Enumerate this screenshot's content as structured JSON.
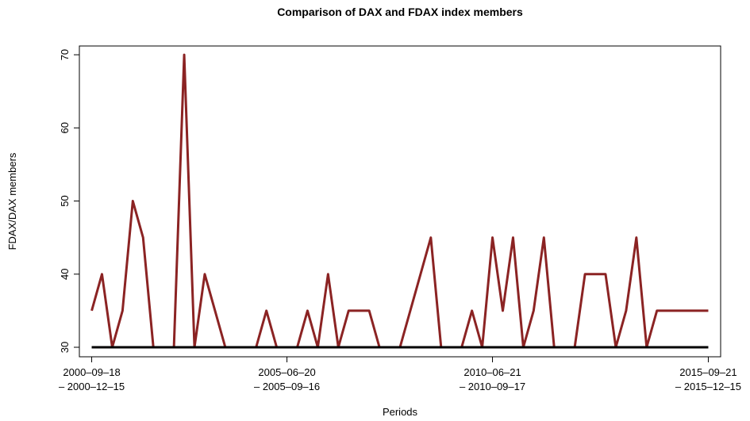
{
  "chart_data": {
    "type": "line",
    "title": "Comparison of DAX and FDAX index members",
    "x_label": "Periods",
    "y_label": "FDAX/DAX members",
    "categories": [
      "2000–09–18\n– 2000–12–15",
      null,
      null,
      null,
      null,
      null,
      null,
      null,
      null,
      null,
      null,
      null,
      null,
      null,
      null,
      null,
      null,
      null,
      null,
      "2005–06–20\n– 2005–09–16",
      null,
      null,
      null,
      null,
      null,
      null,
      null,
      null,
      null,
      null,
      null,
      null,
      null,
      null,
      null,
      null,
      null,
      null,
      null,
      "2010–06–21\n– 2010–09–17",
      null,
      null,
      null,
      null,
      null,
      null,
      null,
      null,
      null,
      null,
      null,
      null,
      null,
      null,
      null,
      null,
      null,
      null,
      null,
      null,
      "2015–09–21\n– 2015–12–15"
    ],
    "series": [
      {
        "color": "#8b2323",
        "values": [
          35,
          40,
          30,
          35,
          50,
          45,
          30,
          30,
          30,
          70,
          30,
          40,
          35,
          30,
          30,
          30,
          30,
          35,
          30,
          30,
          30,
          35,
          30,
          40,
          30,
          35,
          35,
          35,
          30,
          30,
          30,
          35,
          40,
          45,
          30,
          30,
          30,
          35,
          30,
          45,
          35,
          45,
          30,
          35,
          45,
          30,
          30,
          30,
          40,
          40,
          40,
          30,
          35,
          45,
          30,
          35,
          35,
          35,
          35,
          35,
          35
        ]
      },
      {
        "color": "#000000",
        "values": [
          30,
          30,
          30,
          30,
          30,
          30,
          30,
          30,
          30,
          30,
          30,
          30,
          30,
          30,
          30,
          30,
          30,
          30,
          30,
          30,
          30,
          30,
          30,
          30,
          30,
          30,
          30,
          30,
          30,
          30,
          30,
          30,
          30,
          30,
          30,
          30,
          30,
          30,
          30,
          30,
          30,
          30,
          30,
          30,
          30,
          30,
          30,
          30,
          30,
          30,
          30,
          30,
          30,
          30,
          30,
          30,
          30,
          30,
          30,
          30,
          30
        ]
      }
    ],
    "ylim": [
      28.7,
      71.2
    ],
    "yticks": [
      30,
      40,
      50,
      60,
      70
    ]
  }
}
